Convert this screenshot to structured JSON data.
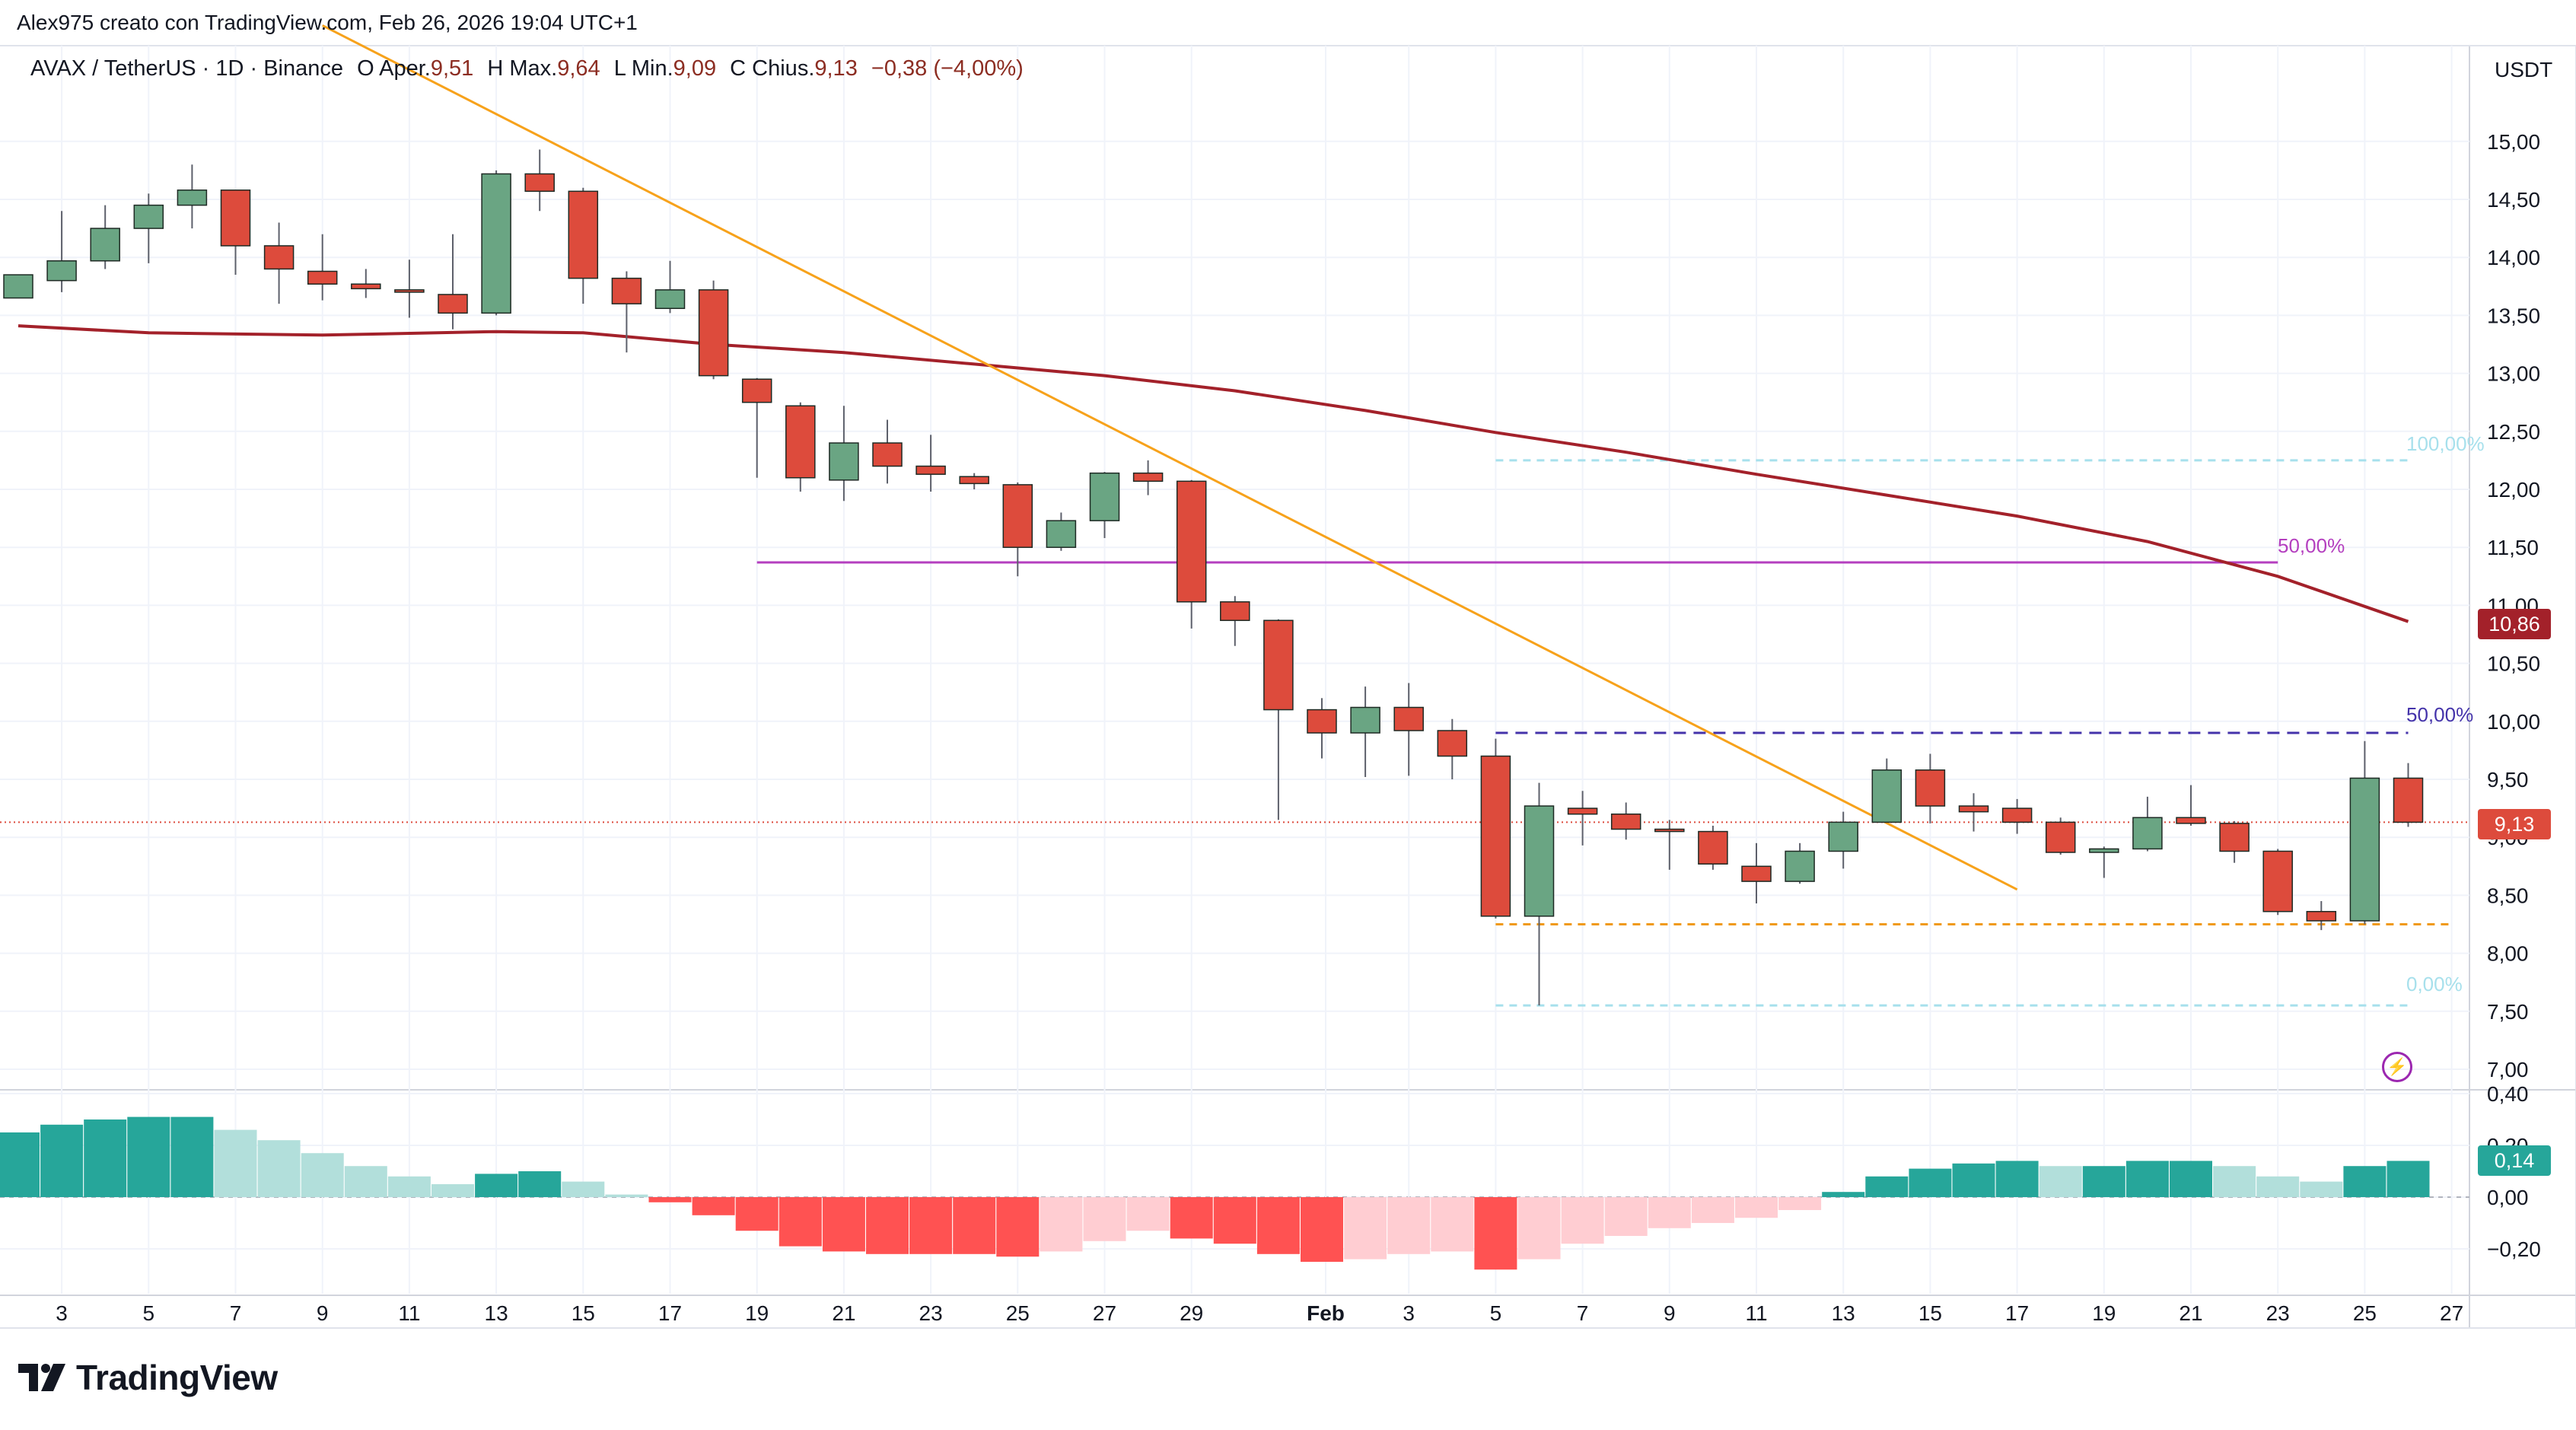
{
  "header": {
    "attribution": "Alex975 creato con TradingView.com, Feb 26, 2026 19:04 UTC+1",
    "symbol": "AVAX / TetherUS · 1D · Binance",
    "open_label": "O",
    "open_text": "Aper.",
    "open_value": "9,51",
    "high_label": "H",
    "high_text": "Max.",
    "high_value": "9,64",
    "low_label": "L",
    "low_text": "Min.",
    "low_value": "9,09",
    "close_label": "C",
    "close_text": "Chius.",
    "close_value": "9,13",
    "change": "−0,38 (−4,00%)"
  },
  "price_axis": {
    "unit": "USDT",
    "ticks": [
      "15,00",
      "14,50",
      "14,00",
      "13,50",
      "13,00",
      "12,50",
      "12,00",
      "11,50",
      "11,00",
      "10,50",
      "10,00",
      "9,50",
      "9,00",
      "8,50",
      "8,00",
      "7,50",
      "7,00"
    ]
  },
  "osc_axis": {
    "ticks": [
      "0,40",
      "0,20",
      "0,00",
      "−0,20"
    ]
  },
  "time_axis": {
    "labels": [
      "3",
      "5",
      "7",
      "9",
      "11",
      "13",
      "15",
      "17",
      "19",
      "21",
      "23",
      "25",
      "27",
      "29",
      "Feb",
      "3",
      "5",
      "7",
      "9",
      "11",
      "13",
      "15",
      "17",
      "19",
      "21",
      "23",
      "25",
      "27"
    ]
  },
  "annotations": {
    "fib_100": "100,00%",
    "fib_50_purple": "50,00%",
    "fib_50_blue": "50,00%",
    "fib_0": "0,00%",
    "ma_price_tag": "10,86",
    "last_price_tag": "9,13",
    "osc_value_tag": "0,14"
  },
  "colors": {
    "up": "#6aa583",
    "down": "#dd4b3c",
    "ma": "#a3212a",
    "trend": "#f7a21b",
    "fib_light": "#a7e0ec",
    "fib_purple": "#b43fbf",
    "fib_blue": "#4433aa",
    "support": "#f09a1a",
    "hist_up_strong": "#26a69a",
    "hist_up_weak": "#b2dfdb",
    "hist_down_strong": "#ff5252",
    "hist_down_weak": "#ffcdd2"
  },
  "footer": {
    "brand": "TradingView"
  },
  "chart_data": {
    "type": "candlestick",
    "title": "AVAX / TetherUS · 1D · Binance",
    "ylabel": "USDT",
    "ylim": [
      6.8,
      15.6
    ],
    "candles": [
      {
        "date": "2026-01-02",
        "o": 13.65,
        "h": 13.85,
        "l": 13.65,
        "c": 13.85
      },
      {
        "date": "2026-01-03",
        "o": 13.8,
        "h": 14.4,
        "l": 13.7,
        "c": 13.97
      },
      {
        "date": "2026-01-04",
        "o": 13.97,
        "h": 14.45,
        "l": 13.9,
        "c": 14.25
      },
      {
        "date": "2026-01-05",
        "o": 14.25,
        "h": 14.55,
        "l": 13.95,
        "c": 14.45
      },
      {
        "date": "2026-01-06",
        "o": 14.45,
        "h": 14.8,
        "l": 14.25,
        "c": 14.58
      },
      {
        "date": "2026-01-07",
        "o": 14.58,
        "h": 14.58,
        "l": 13.85,
        "c": 14.1
      },
      {
        "date": "2026-01-08",
        "o": 14.1,
        "h": 14.3,
        "l": 13.6,
        "c": 13.9
      },
      {
        "date": "2026-01-09",
        "o": 13.88,
        "h": 14.2,
        "l": 13.63,
        "c": 13.77
      },
      {
        "date": "2026-01-10",
        "o": 13.77,
        "h": 13.9,
        "l": 13.65,
        "c": 13.73
      },
      {
        "date": "2026-01-11",
        "o": 13.72,
        "h": 13.98,
        "l": 13.48,
        "c": 13.7
      },
      {
        "date": "2026-01-12",
        "o": 13.68,
        "h": 14.2,
        "l": 13.38,
        "c": 13.52
      },
      {
        "date": "2026-01-13",
        "o": 13.52,
        "h": 14.75,
        "l": 13.5,
        "c": 14.72
      },
      {
        "date": "2026-01-14",
        "o": 14.72,
        "h": 14.93,
        "l": 14.4,
        "c": 14.57
      },
      {
        "date": "2026-01-15",
        "o": 14.57,
        "h": 14.6,
        "l": 13.6,
        "c": 13.82
      },
      {
        "date": "2026-01-16",
        "o": 13.82,
        "h": 13.88,
        "l": 13.18,
        "c": 13.6
      },
      {
        "date": "2026-01-17",
        "o": 13.56,
        "h": 13.97,
        "l": 13.52,
        "c": 13.72
      },
      {
        "date": "2026-01-18",
        "o": 13.72,
        "h": 13.8,
        "l": 12.95,
        "c": 12.98
      },
      {
        "date": "2026-01-19",
        "o": 12.95,
        "h": 12.96,
        "l": 12.1,
        "c": 12.75
      },
      {
        "date": "2026-01-20",
        "o": 12.72,
        "h": 12.75,
        "l": 11.98,
        "c": 12.1
      },
      {
        "date": "2026-01-21",
        "o": 12.08,
        "h": 12.72,
        "l": 11.9,
        "c": 12.4
      },
      {
        "date": "2026-01-22",
        "o": 12.4,
        "h": 12.6,
        "l": 12.05,
        "c": 12.2
      },
      {
        "date": "2026-01-23",
        "o": 12.2,
        "h": 12.47,
        "l": 11.98,
        "c": 12.13
      },
      {
        "date": "2026-01-24",
        "o": 12.11,
        "h": 12.14,
        "l": 12.0,
        "c": 12.05
      },
      {
        "date": "2026-01-25",
        "o": 12.04,
        "h": 12.06,
        "l": 11.25,
        "c": 11.5
      },
      {
        "date": "2026-01-26",
        "o": 11.5,
        "h": 11.8,
        "l": 11.47,
        "c": 11.73
      },
      {
        "date": "2026-01-27",
        "o": 11.73,
        "h": 12.15,
        "l": 11.58,
        "c": 12.14
      },
      {
        "date": "2026-01-28",
        "o": 12.14,
        "h": 12.25,
        "l": 11.95,
        "c": 12.07
      },
      {
        "date": "2026-01-29",
        "o": 12.07,
        "h": 12.08,
        "l": 10.8,
        "c": 11.03
      },
      {
        "date": "2026-01-30",
        "o": 11.03,
        "h": 11.08,
        "l": 10.65,
        "c": 10.87
      },
      {
        "date": "2026-01-31",
        "o": 10.87,
        "h": 10.88,
        "l": 9.15,
        "c": 10.1
      },
      {
        "date": "2026-02-01",
        "o": 10.1,
        "h": 10.2,
        "l": 9.68,
        "c": 9.9
      },
      {
        "date": "2026-02-02",
        "o": 9.9,
        "h": 10.3,
        "l": 9.52,
        "c": 10.12
      },
      {
        "date": "2026-02-03",
        "o": 10.12,
        "h": 10.33,
        "l": 9.53,
        "c": 9.92
      },
      {
        "date": "2026-02-04",
        "o": 9.92,
        "h": 10.02,
        "l": 9.5,
        "c": 9.7
      },
      {
        "date": "2026-02-05",
        "o": 9.7,
        "h": 9.85,
        "l": 8.3,
        "c": 8.32
      },
      {
        "date": "2026-02-06",
        "o": 8.32,
        "h": 9.47,
        "l": 7.55,
        "c": 9.27
      },
      {
        "date": "2026-02-07",
        "o": 9.25,
        "h": 9.4,
        "l": 8.93,
        "c": 9.2
      },
      {
        "date": "2026-02-08",
        "o": 9.2,
        "h": 9.3,
        "l": 8.98,
        "c": 9.07
      },
      {
        "date": "2026-02-09",
        "o": 9.07,
        "h": 9.15,
        "l": 8.72,
        "c": 9.05
      },
      {
        "date": "2026-02-10",
        "o": 9.05,
        "h": 9.1,
        "l": 8.72,
        "c": 8.77
      },
      {
        "date": "2026-02-11",
        "o": 8.75,
        "h": 8.95,
        "l": 8.43,
        "c": 8.62
      },
      {
        "date": "2026-02-12",
        "o": 8.62,
        "h": 8.95,
        "l": 8.6,
        "c": 8.88
      },
      {
        "date": "2026-02-13",
        "o": 8.88,
        "h": 9.22,
        "l": 8.73,
        "c": 9.13
      },
      {
        "date": "2026-02-14",
        "o": 9.13,
        "h": 9.68,
        "l": 9.13,
        "c": 9.58
      },
      {
        "date": "2026-02-15",
        "o": 9.58,
        "h": 9.72,
        "l": 9.12,
        "c": 9.27
      },
      {
        "date": "2026-02-16",
        "o": 9.27,
        "h": 9.38,
        "l": 9.05,
        "c": 9.22
      },
      {
        "date": "2026-02-17",
        "o": 9.25,
        "h": 9.33,
        "l": 9.03,
        "c": 9.13
      },
      {
        "date": "2026-02-18",
        "o": 9.13,
        "h": 9.17,
        "l": 8.85,
        "c": 8.87
      },
      {
        "date": "2026-02-19",
        "o": 8.87,
        "h": 8.92,
        "l": 8.65,
        "c": 8.9
      },
      {
        "date": "2026-02-20",
        "o": 8.9,
        "h": 9.35,
        "l": 8.88,
        "c": 9.17
      },
      {
        "date": "2026-02-21",
        "o": 9.17,
        "h": 9.45,
        "l": 9.1,
        "c": 9.12
      },
      {
        "date": "2026-02-22",
        "o": 9.12,
        "h": 9.14,
        "l": 8.78,
        "c": 8.88
      },
      {
        "date": "2026-02-23",
        "o": 8.88,
        "h": 8.9,
        "l": 8.33,
        "c": 8.36
      },
      {
        "date": "2026-02-24",
        "o": 8.36,
        "h": 8.45,
        "l": 8.2,
        "c": 8.28
      },
      {
        "date": "2026-02-25",
        "o": 8.28,
        "h": 9.83,
        "l": 8.25,
        "c": 9.51
      },
      {
        "date": "2026-02-26",
        "o": 9.51,
        "h": 9.64,
        "l": 9.09,
        "c": 9.13
      }
    ],
    "moving_average": [
      {
        "date": "2026-01-02",
        "v": 13.41
      },
      {
        "date": "2026-01-05",
        "v": 13.35
      },
      {
        "date": "2026-01-09",
        "v": 13.33
      },
      {
        "date": "2026-01-13",
        "v": 13.36
      },
      {
        "date": "2026-01-15",
        "v": 13.35
      },
      {
        "date": "2026-01-18",
        "v": 13.25
      },
      {
        "date": "2026-01-21",
        "v": 13.18
      },
      {
        "date": "2026-01-24",
        "v": 13.08
      },
      {
        "date": "2026-01-27",
        "v": 12.98
      },
      {
        "date": "2026-01-30",
        "v": 12.85
      },
      {
        "date": "2026-02-02",
        "v": 12.68
      },
      {
        "date": "2026-02-05",
        "v": 12.49
      },
      {
        "date": "2026-02-08",
        "v": 12.32
      },
      {
        "date": "2026-02-11",
        "v": 12.13
      },
      {
        "date": "2026-02-14",
        "v": 11.95
      },
      {
        "date": "2026-02-17",
        "v": 11.77
      },
      {
        "date": "2026-02-20",
        "v": 11.55
      },
      {
        "date": "2026-02-23",
        "v": 11.25
      },
      {
        "date": "2026-02-26",
        "v": 10.86
      }
    ],
    "trendline": {
      "from": {
        "date": "2026-01-09",
        "v": 16.0
      },
      "to": {
        "date": "2026-02-17",
        "v": 8.55
      }
    },
    "levels": [
      {
        "name": "100,00%",
        "value": 12.25,
        "from": "2026-02-05",
        "to": "2026-02-26"
      },
      {
        "name": "50,00%",
        "value": 11.37,
        "from": "2026-01-19",
        "to": "2026-02-23"
      },
      {
        "name": "50,00%",
        "value": 9.9,
        "from": "2026-02-05",
        "to": "2026-02-26"
      },
      {
        "name": "0,00%",
        "value": 7.55,
        "from": "2026-02-05",
        "to": "2026-02-26"
      },
      {
        "name": "support",
        "value": 8.25,
        "from": "2026-02-05",
        "to": "2026-02-27"
      },
      {
        "name": "last",
        "value": 9.13
      }
    ],
    "oscillator": {
      "ylim": [
        -0.3,
        0.42
      ],
      "values": [
        0.25,
        0.28,
        0.3,
        0.31,
        0.31,
        0.26,
        0.22,
        0.17,
        0.12,
        0.08,
        0.05,
        0.09,
        0.1,
        0.06,
        0.01,
        -0.02,
        -0.07,
        -0.13,
        -0.19,
        -0.21,
        -0.22,
        -0.22,
        -0.22,
        -0.23,
        -0.21,
        -0.17,
        -0.13,
        -0.16,
        -0.18,
        -0.22,
        -0.25,
        -0.24,
        -0.22,
        -0.21,
        -0.28,
        -0.24,
        -0.18,
        -0.15,
        -0.12,
        -0.1,
        -0.08,
        -0.05,
        0.02,
        0.08,
        0.11,
        0.13,
        0.14,
        0.12,
        0.12,
        0.14,
        0.14,
        0.12,
        0.08,
        0.06,
        0.12,
        0.14
      ]
    }
  }
}
